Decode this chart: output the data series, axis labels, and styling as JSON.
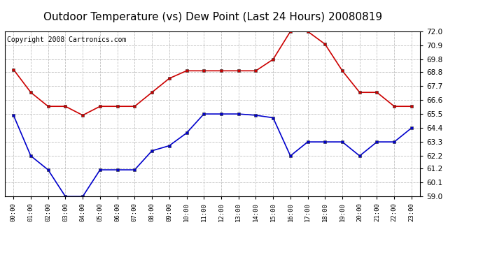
{
  "title": "Outdoor Temperature (vs) Dew Point (Last 24 Hours) 20080819",
  "copyright": "Copyright 2008 Cartronics.com",
  "hours": [
    "00:00",
    "01:00",
    "02:00",
    "03:00",
    "04:00",
    "05:00",
    "06:00",
    "07:00",
    "08:00",
    "09:00",
    "10:00",
    "11:00",
    "12:00",
    "13:00",
    "14:00",
    "15:00",
    "16:00",
    "17:00",
    "18:00",
    "19:00",
    "20:00",
    "21:00",
    "22:00",
    "23:00"
  ],
  "temp": [
    69.0,
    67.2,
    66.1,
    66.1,
    65.4,
    66.1,
    66.1,
    66.1,
    67.2,
    68.3,
    68.9,
    68.9,
    68.9,
    68.9,
    68.9,
    69.8,
    72.0,
    72.0,
    71.0,
    68.9,
    67.2,
    67.2,
    66.1,
    66.1
  ],
  "dewpoint": [
    65.4,
    62.2,
    61.1,
    59.0,
    59.0,
    61.1,
    61.1,
    61.1,
    62.6,
    63.0,
    64.0,
    65.5,
    65.5,
    65.5,
    65.4,
    65.2,
    62.2,
    63.3,
    63.3,
    63.3,
    62.2,
    63.3,
    63.3,
    64.4
  ],
  "temp_color": "#cc0000",
  "dew_color": "#0000cc",
  "bg_color": "#ffffff",
  "grid_color": "#c0c0c0",
  "ylim": [
    59.0,
    72.0
  ],
  "yticks": [
    59.0,
    60.1,
    61.2,
    62.2,
    63.3,
    64.4,
    65.5,
    66.6,
    67.7,
    68.8,
    69.8,
    70.9,
    72.0
  ],
  "title_fontsize": 11,
  "copyright_fontsize": 7,
  "markersize": 3.5,
  "linewidth": 1.2
}
